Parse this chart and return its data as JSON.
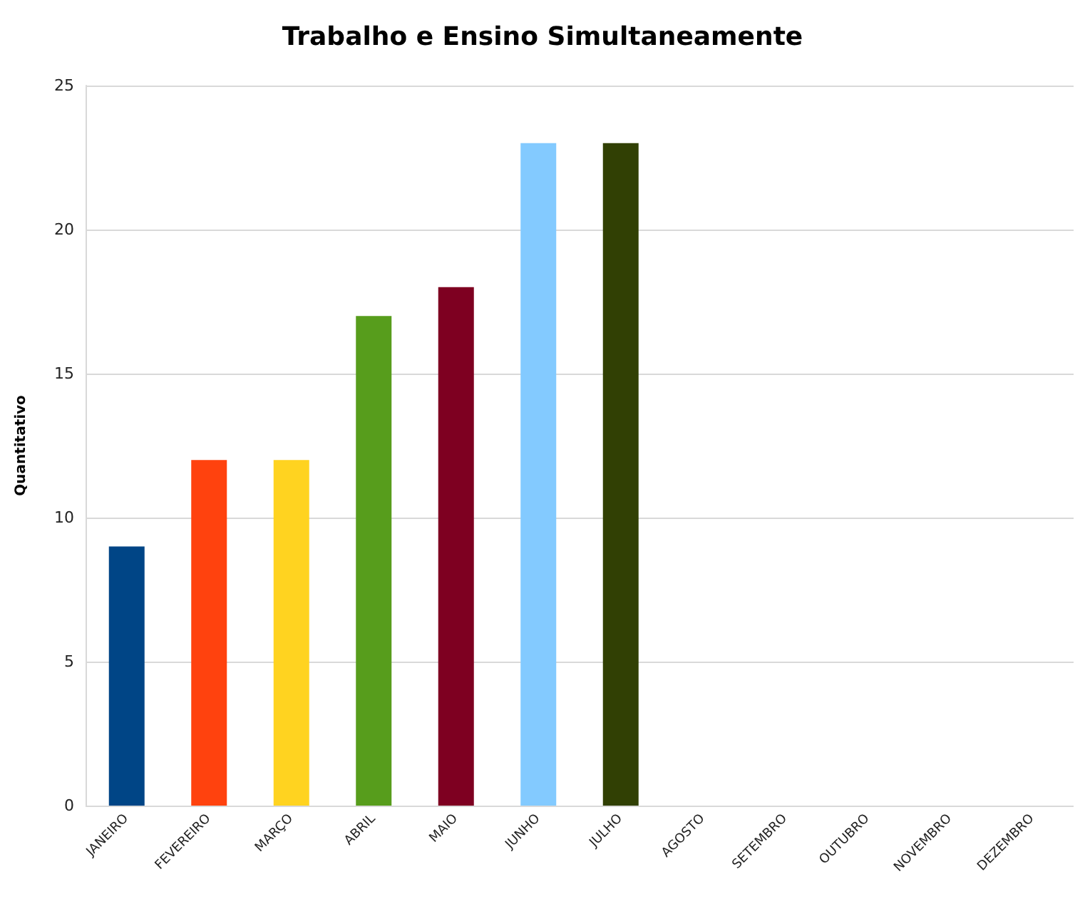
{
  "chart_data": {
    "type": "bar",
    "title": "Trabalho e Ensino Simultaneamente",
    "ylabel": "Quantitativo",
    "categories": [
      "JANEIRO",
      "FEVEREIRO",
      "MARÇO",
      "ABRIL",
      "MAIO",
      "JUNHO",
      "JULHO",
      "AGOSTO",
      "SETEMBRO",
      "OUTUBRO",
      "NOVEMBRO",
      "DEZEMBRO"
    ],
    "values": [
      9,
      12,
      12,
      17,
      18,
      23,
      23,
      null,
      null,
      null,
      null,
      null
    ],
    "colors": [
      "#004586",
      "#ff420e",
      "#ffd320",
      "#579d1c",
      "#7e0021",
      "#83caff",
      "#314004",
      null,
      null,
      null,
      null,
      null
    ],
    "ylim": [
      0,
      25
    ],
    "yticks": [
      0,
      5,
      10,
      15,
      20,
      25
    ],
    "grid": "y"
  }
}
